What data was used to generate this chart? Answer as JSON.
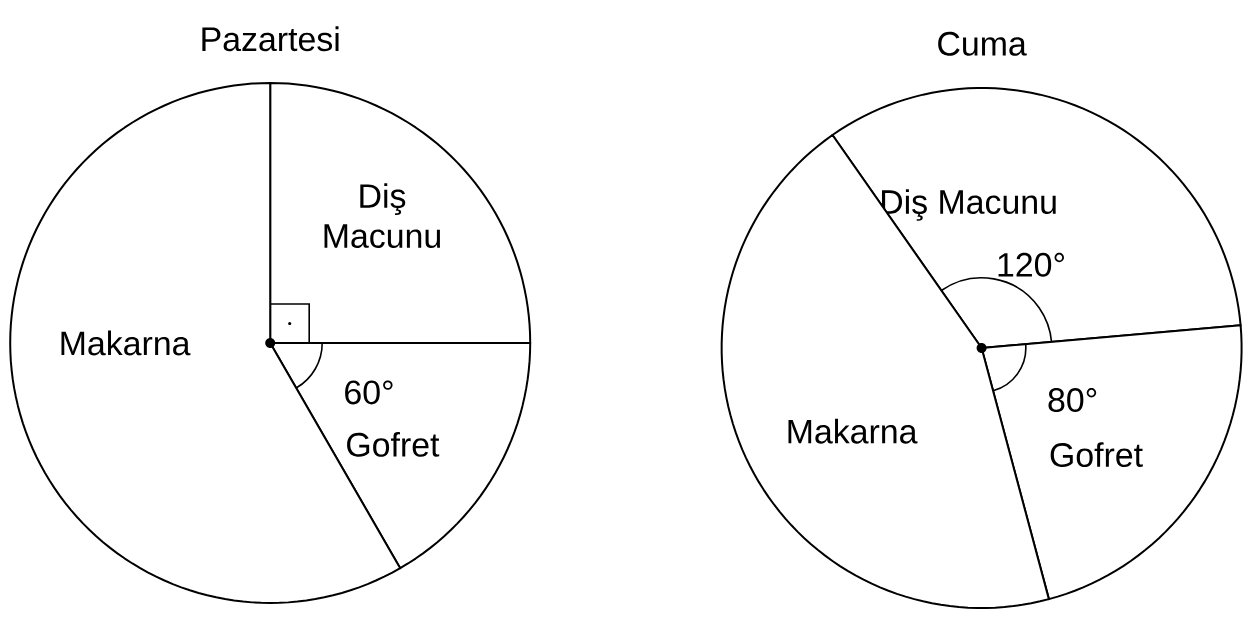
{
  "chart_data": [
    {
      "type": "pie",
      "title": "Pazartesi",
      "categories": [
        "Diş Macunu",
        "Gofret",
        "Makarna"
      ],
      "values": [
        90,
        60,
        210
      ],
      "value_labels": [
        null,
        "60°",
        null
      ],
      "colors": [
        "#ffffff",
        "#ffffff",
        "#ffffff"
      ]
    },
    {
      "type": "pie",
      "title": "Cuma",
      "categories": [
        "Diş Macunu",
        "Gofret",
        "Makarna"
      ],
      "values": [
        120,
        80,
        160
      ],
      "value_labels": [
        "120°",
        "80°",
        null
      ],
      "colors": [
        "#ffffff",
        "#ffffff",
        "#ffffff"
      ]
    }
  ]
}
